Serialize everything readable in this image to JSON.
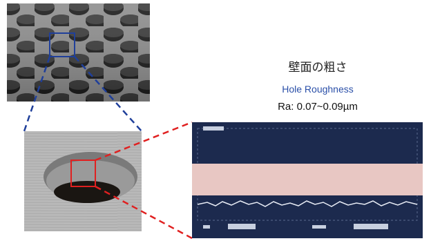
{
  "heading": {
    "japanese": "壁面の粗さ",
    "english": "Hole Roughness",
    "value": "Ra: 0.07~0.09µm"
  }
}
